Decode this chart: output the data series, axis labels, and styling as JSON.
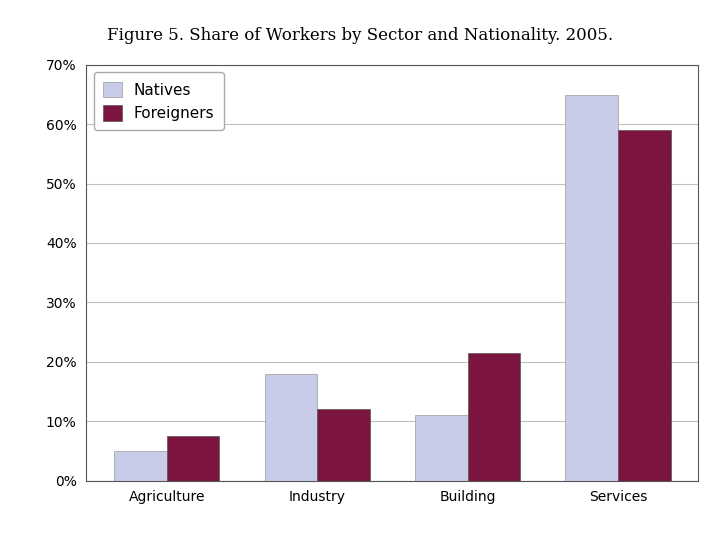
{
  "title": "Figure 5. Share of Workers by Sector and Nationality. 2005.",
  "categories": [
    "Agriculture",
    "Industry",
    "Building",
    "Services"
  ],
  "natives": [
    0.05,
    0.18,
    0.11,
    0.65
  ],
  "foreigners": [
    0.075,
    0.12,
    0.215,
    0.59
  ],
  "natives_color": "#c8cce8",
  "foreigners_color": "#7b1540",
  "ylim": [
    0,
    0.7
  ],
  "yticks": [
    0.0,
    0.1,
    0.2,
    0.3,
    0.4,
    0.5,
    0.6,
    0.7
  ],
  "ytick_labels": [
    "0%",
    "10%",
    "20%",
    "30%",
    "40%",
    "50%",
    "60%",
    "70%"
  ],
  "legend_labels": [
    "Natives",
    "Foreigners"
  ],
  "bar_width": 0.35,
  "title_fontsize": 12,
  "tick_fontsize": 10,
  "legend_fontsize": 11,
  "figure_facecolor": "#ffffff",
  "axes_facecolor": "#ffffff",
  "grid_color": "#c0c0c0"
}
